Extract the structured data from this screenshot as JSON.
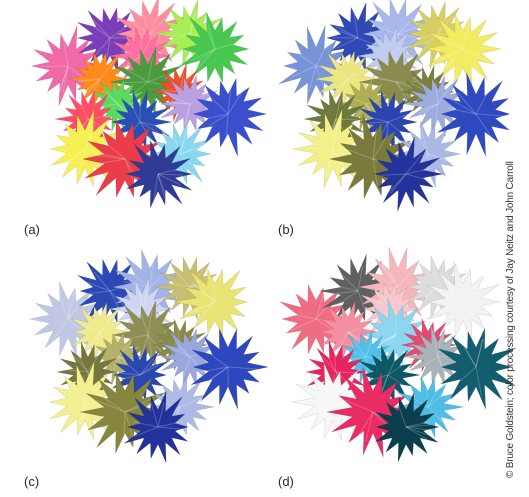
{
  "panels": [
    {
      "id": "a",
      "label": "(a)",
      "palette": [
        "#f06aa8",
        "#7a3fb8",
        "#ff8c9f",
        "#ff6fa0",
        "#a8ef55",
        "#48c851",
        "#ff8a1c",
        "#4c9b3f",
        "#5cd95f",
        "#f0502a",
        "#ff4d64",
        "#2a4fb5",
        "#b9a0e0",
        "#f7f053",
        "#eb3d49",
        "#88d8f0",
        "#2e3c98",
        "#3a4fce"
      ]
    },
    {
      "id": "b",
      "label": "(b)",
      "palette": [
        "#7894d8",
        "#2f49b5",
        "#a8b8ea",
        "#c0ccf0",
        "#d8cf63",
        "#f2ec62",
        "#ece680",
        "#8a8b4c",
        "#b0ae55",
        "#7d8040",
        "#6e7a3c",
        "#2a45b0",
        "#9cacdf",
        "#f3f08a",
        "#7a7a3c",
        "#aab8e6",
        "#24339b",
        "#2f4ac0"
      ]
    },
    {
      "id": "c",
      "label": "(c)",
      "palette": [
        "#c0c8e6",
        "#2c48b5",
        "#a3b3e8",
        "#cfd6f2",
        "#c9bf72",
        "#e9e474",
        "#f0eb8a",
        "#8f8e55",
        "#b4b268",
        "#8a8a48",
        "#75773d",
        "#2a46b0",
        "#98a8df",
        "#f3ef93",
        "#86863f",
        "#aeb9e6",
        "#22329a",
        "#2d48bd"
      ]
    },
    {
      "id": "d",
      "label": "(d)",
      "palette": [
        "#ef6d83",
        "#606060",
        "#f5b6be",
        "#f7c7cc",
        "#dcdcdc",
        "#f2f2f2",
        "#f48ea0",
        "#8cd6f0",
        "#4fc1e8",
        "#e34a6f",
        "#e8245f",
        "#0d5766",
        "#a8b3b8",
        "#f7f7f7",
        "#e92c63",
        "#4fbde6",
        "#0b3f4e",
        "#125d70"
      ]
    }
  ],
  "credit": "© Bruce Goldstein; color processing courtesy of Jay Neitz and John Carroll"
}
